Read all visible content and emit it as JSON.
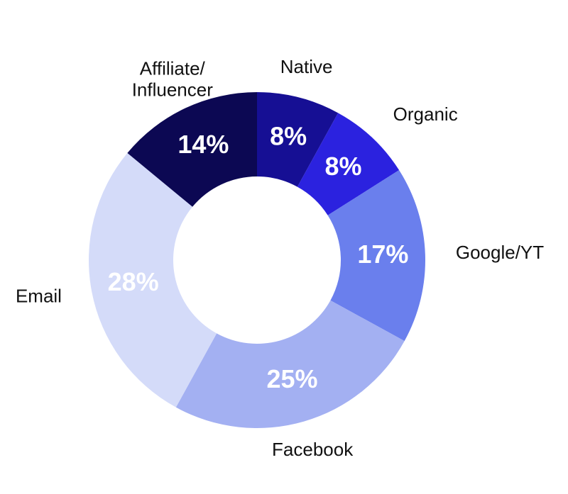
{
  "chart_data": {
    "type": "pie",
    "categories": [
      "Native",
      "Organic",
      "Google/YT",
      "Facebook",
      "Email",
      "Affiliate/ Influencer"
    ],
    "values": [
      8,
      8,
      17,
      25,
      28,
      14
    ],
    "value_labels": [
      "8%",
      "8%",
      "17%",
      "25%",
      "28%",
      "14%"
    ],
    "colors": [
      "#160f94",
      "#2b22df",
      "#6a7fed",
      "#a3b0f2",
      "#d4dbf9",
      "#0c0853"
    ]
  }
}
